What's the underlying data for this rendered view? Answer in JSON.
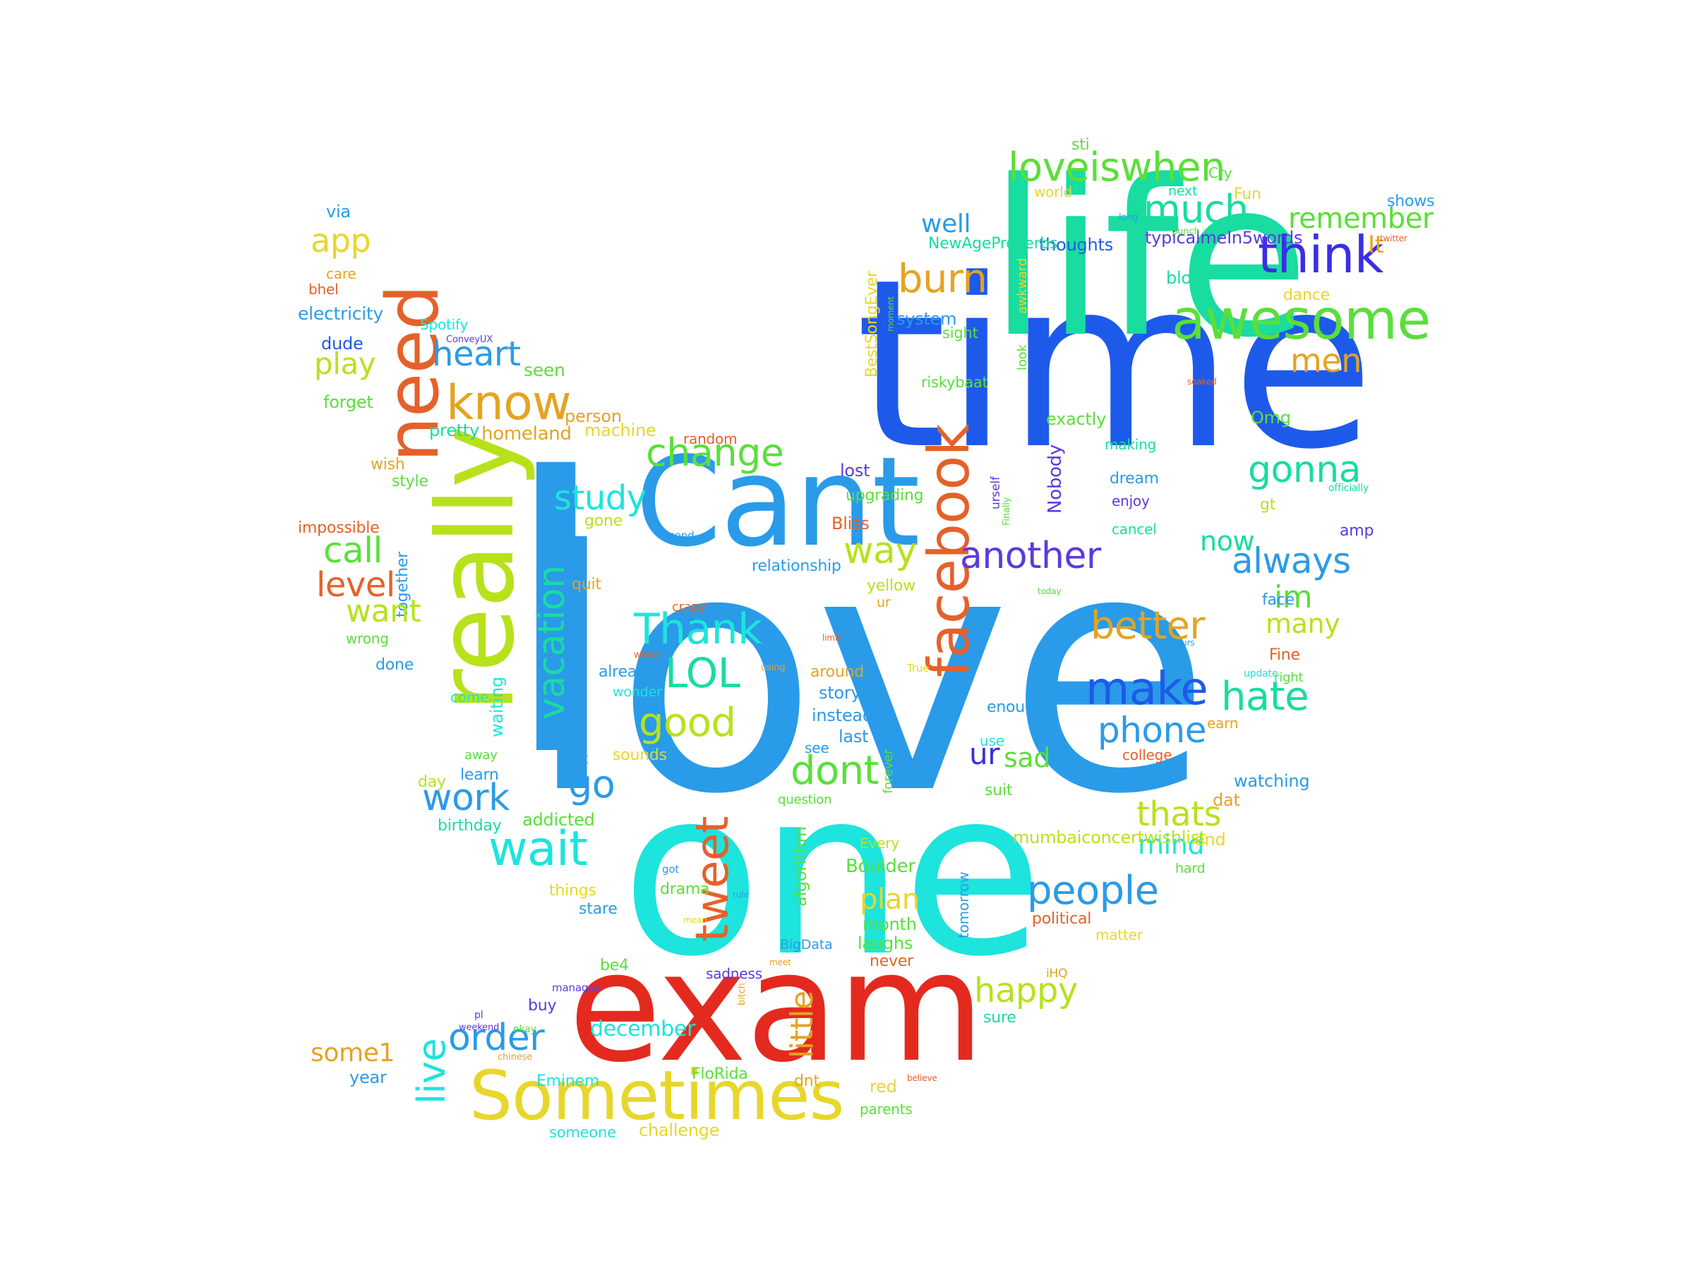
{
  "palette": {
    "cyan": "#1de4dc",
    "sky": "#2a9be8",
    "blue": "#1e5aea",
    "teal": "#18dca0",
    "green": "#5adf3a",
    "lime": "#b7e21b",
    "yellow": "#e8d62a",
    "orange": "#e5a321",
    "red": "#e42a1f",
    "redorange": "#e5612a",
    "indigo": "#3a2ee6",
    "purple": "#5a3ae0"
  },
  "words": [
    {
      "t": "love",
      "c": "sky"
    },
    {
      "t": "time",
      "c": "blue"
    },
    {
      "t": "life",
      "c": "teal"
    },
    {
      "t": "one",
      "c": "cyan"
    },
    {
      "t": "exam",
      "c": "red"
    },
    {
      "t": "I",
      "c": "sky"
    },
    {
      "t": "Cant",
      "c": "sky"
    },
    {
      "t": "really",
      "c": "lime"
    },
    {
      "t": "need",
      "c": "redorange"
    },
    {
      "t": "facebook",
      "c": "redorange"
    },
    {
      "t": "awesome",
      "c": "green"
    },
    {
      "t": "think",
      "c": "indigo"
    },
    {
      "t": "Sometimes",
      "c": "yellow"
    },
    {
      "t": "loveiswhen",
      "c": "green"
    },
    {
      "t": "much",
      "c": "teal"
    },
    {
      "t": "burn",
      "c": "orange"
    },
    {
      "t": "know",
      "c": "orange"
    },
    {
      "t": "change",
      "c": "green"
    },
    {
      "t": "study",
      "c": "cyan"
    },
    {
      "t": "Thank",
      "c": "cyan"
    },
    {
      "t": "LOL",
      "c": "teal"
    },
    {
      "t": "good",
      "c": "lime"
    },
    {
      "t": "make",
      "c": "blue"
    },
    {
      "t": "phone",
      "c": "sky"
    },
    {
      "t": "hate",
      "c": "teal"
    },
    {
      "t": "better",
      "c": "orange"
    },
    {
      "t": "another",
      "c": "purple"
    },
    {
      "t": "way",
      "c": "lime"
    },
    {
      "t": "gonna",
      "c": "teal"
    },
    {
      "t": "always",
      "c": "sky"
    },
    {
      "t": "people",
      "c": "sky"
    },
    {
      "t": "thats",
      "c": "lime"
    },
    {
      "t": "happy",
      "c": "lime"
    },
    {
      "t": "wait",
      "c": "cyan"
    },
    {
      "t": "work",
      "c": "sky"
    },
    {
      "t": "go",
      "c": "sky"
    },
    {
      "t": "dont",
      "c": "green"
    },
    {
      "t": "tweet",
      "c": "redorange"
    },
    {
      "t": "order",
      "c": "sky"
    },
    {
      "t": "live",
      "c": "cyan"
    },
    {
      "t": "vacation",
      "c": "teal"
    },
    {
      "t": "call",
      "c": "green"
    },
    {
      "t": "level",
      "c": "redorange"
    },
    {
      "t": "want",
      "c": "lime"
    },
    {
      "t": "heart",
      "c": "sky"
    },
    {
      "t": "app",
      "c": "yellow"
    },
    {
      "t": "play",
      "c": "lime"
    },
    {
      "t": "remember",
      "c": "green"
    },
    {
      "t": "men",
      "c": "orange"
    },
    {
      "t": "well",
      "c": "sky"
    },
    {
      "t": "im",
      "c": "green"
    },
    {
      "t": "many",
      "c": "lime"
    },
    {
      "t": "ur",
      "c": "indigo"
    },
    {
      "t": "sad",
      "c": "green"
    },
    {
      "t": "plan",
      "c": "yellow"
    },
    {
      "t": "little",
      "c": "orange"
    },
    {
      "t": "some1",
      "c": "orange"
    },
    {
      "t": "mind",
      "c": "cyan"
    },
    {
      "t": "december",
      "c": "cyan"
    },
    {
      "t": "Boulder",
      "c": "green"
    },
    {
      "t": "It",
      "c": "orange"
    },
    {
      "t": "now",
      "c": "teal"
    },
    {
      "t": "via",
      "c": "sky"
    },
    {
      "t": "care",
      "c": "orange"
    },
    {
      "t": "bhel",
      "c": "redorange"
    },
    {
      "t": "electricity",
      "c": "sky"
    },
    {
      "t": "Spotify",
      "c": "cyan"
    },
    {
      "t": "ConveyUX",
      "c": "purple"
    },
    {
      "t": "dude",
      "c": "blue"
    },
    {
      "t": "seen",
      "c": "green"
    },
    {
      "t": "forget",
      "c": "green"
    },
    {
      "t": "person",
      "c": "orange"
    },
    {
      "t": "pretty",
      "c": "teal"
    },
    {
      "t": "homeland",
      "c": "orange"
    },
    {
      "t": "machine",
      "c": "yellow"
    },
    {
      "t": "random",
      "c": "redorange"
    },
    {
      "t": "wish",
      "c": "orange"
    },
    {
      "t": "style",
      "c": "green"
    },
    {
      "t": "impossible",
      "c": "redorange"
    },
    {
      "t": "together",
      "c": "sky"
    },
    {
      "t": "gone",
      "c": "lime"
    },
    {
      "t": "quit",
      "c": "orange"
    },
    {
      "t": "wrong",
      "c": "green"
    },
    {
      "t": "done",
      "c": "sky"
    },
    {
      "t": "waiting",
      "c": "cyan"
    },
    {
      "t": "come",
      "c": "cyan"
    },
    {
      "t": "away",
      "c": "green"
    },
    {
      "t": "learn",
      "c": "sky"
    },
    {
      "t": "day",
      "c": "lime"
    },
    {
      "t": "birthday",
      "c": "teal"
    },
    {
      "t": "addicted",
      "c": "green"
    },
    {
      "t": "jet",
      "c": "sky"
    },
    {
      "t": "sounds",
      "c": "yellow"
    },
    {
      "t": "things",
      "c": "yellow"
    },
    {
      "t": "stare",
      "c": "sky"
    },
    {
      "t": "relationship",
      "c": "sky"
    },
    {
      "t": "crazy",
      "c": "redorange"
    },
    {
      "t": "already",
      "c": "sky"
    },
    {
      "t": "wonder",
      "c": "cyan"
    },
    {
      "t": "winter",
      "c": "redorange"
    },
    {
      "t": "using",
      "c": "orange"
    },
    {
      "t": "limit",
      "c": "redorange"
    },
    {
      "t": "around",
      "c": "orange"
    },
    {
      "t": "story",
      "c": "sky"
    },
    {
      "t": "instead",
      "c": "sky"
    },
    {
      "t": "last",
      "c": "sky"
    },
    {
      "t": "see",
      "c": "sky"
    },
    {
      "t": "bring",
      "c": "yellow"
    },
    {
      "t": "forever",
      "c": "green"
    },
    {
      "t": "question",
      "c": "green"
    },
    {
      "t": "algorithm",
      "c": "green"
    },
    {
      "t": "Every",
      "c": "lime"
    },
    {
      "t": "got",
      "c": "sky"
    },
    {
      "t": "drama",
      "c": "green"
    },
    {
      "t": "rule",
      "c": "sky"
    },
    {
      "t": "mean",
      "c": "yellow"
    },
    {
      "t": "month",
      "c": "green"
    },
    {
      "t": "laughs",
      "c": "green"
    },
    {
      "t": "never",
      "c": "redorange"
    },
    {
      "t": "BigData",
      "c": "sky"
    },
    {
      "t": "meet",
      "c": "orange"
    },
    {
      "t": "sadness",
      "c": "purple"
    },
    {
      "t": "bitch",
      "c": "orange"
    },
    {
      "t": "be4",
      "c": "green"
    },
    {
      "t": "manages",
      "c": "purple"
    },
    {
      "t": "pl",
      "c": "purple"
    },
    {
      "t": "weekend",
      "c": "purple"
    },
    {
      "t": "okay",
      "c": "green"
    },
    {
      "t": "buy",
      "c": "purple"
    },
    {
      "t": "chinese",
      "c": "orange"
    },
    {
      "t": "Eminem",
      "c": "cyan"
    },
    {
      "t": "year",
      "c": "sky"
    },
    {
      "t": "someone",
      "c": "cyan"
    },
    {
      "t": "challenge",
      "c": "yellow"
    },
    {
      "t": "FloRida",
      "c": "green"
    },
    {
      "t": "dnt",
      "c": "orange"
    },
    {
      "t": "red",
      "c": "yellow"
    },
    {
      "t": "parents",
      "c": "green"
    },
    {
      "t": "believe",
      "c": "redorange"
    },
    {
      "t": "sure",
      "c": "teal"
    },
    {
      "t": "iHQ",
      "c": "orange"
    },
    {
      "t": "matter",
      "c": "yellow"
    },
    {
      "t": "political",
      "c": "redorange"
    },
    {
      "t": "hard",
      "c": "green"
    },
    {
      "t": "end",
      "c": "yellow"
    },
    {
      "t": "dat",
      "c": "orange"
    },
    {
      "t": "watching",
      "c": "sky"
    },
    {
      "t": "mumbaiconcertwishlist",
      "c": "lime"
    },
    {
      "t": "colours",
      "c": "sky"
    },
    {
      "t": "suit",
      "c": "green"
    },
    {
      "t": "use",
      "c": "cyan"
    },
    {
      "t": "enough",
      "c": "sky"
    },
    {
      "t": "tomorrow",
      "c": "sky"
    },
    {
      "t": "college",
      "c": "redorange"
    },
    {
      "t": "earn",
      "c": "orange"
    },
    {
      "t": "Fine",
      "c": "redorange"
    },
    {
      "t": "right",
      "c": "green"
    },
    {
      "t": "update",
      "c": "cyan"
    },
    {
      "t": "face",
      "c": "sky"
    },
    {
      "t": "True",
      "c": "yellow"
    },
    {
      "t": "ur",
      "c": "orange"
    },
    {
      "t": "yellow",
      "c": "lime"
    },
    {
      "t": "today",
      "c": "green"
    },
    {
      "t": "send",
      "c": "sky"
    },
    {
      "t": "Bliss",
      "c": "redorange"
    },
    {
      "t": "upgrading",
      "c": "green"
    },
    {
      "t": "lost",
      "c": "purple"
    },
    {
      "t": "dream",
      "c": "sky"
    },
    {
      "t": "enjoy",
      "c": "purple"
    },
    {
      "t": "cancel",
      "c": "teal"
    },
    {
      "t": "urself",
      "c": "purple"
    },
    {
      "t": "Finally",
      "c": "green"
    },
    {
      "t": "Nobody",
      "c": "purple"
    },
    {
      "t": "making",
      "c": "teal"
    },
    {
      "t": "officially",
      "c": "teal"
    },
    {
      "t": "gt",
      "c": "lime"
    },
    {
      "t": "Omg",
      "c": "green"
    },
    {
      "t": "amp",
      "c": "purple"
    },
    {
      "t": "exactly",
      "c": "green"
    },
    {
      "t": "soaked",
      "c": "redorange"
    },
    {
      "t": "riskybaat",
      "c": "green"
    },
    {
      "t": "sight",
      "c": "green"
    },
    {
      "t": "system",
      "c": "sky"
    },
    {
      "t": "moment",
      "c": "green"
    },
    {
      "t": "BestSongEver",
      "c": "yellow"
    },
    {
      "t": "look",
      "c": "green"
    },
    {
      "t": "awkward",
      "c": "yellow"
    },
    {
      "t": "thoughts",
      "c": "blue"
    },
    {
      "t": "NewAgeProverbs",
      "c": "teal"
    },
    {
      "t": "blog",
      "c": "teal"
    },
    {
      "t": "dance",
      "c": "yellow"
    },
    {
      "t": "typicalmeIn5words",
      "c": "purple"
    },
    {
      "t": "long",
      "c": "sky"
    },
    {
      "t": "punch",
      "c": "green"
    },
    {
      "t": "twitter",
      "c": "redorange"
    },
    {
      "t": "shows",
      "c": "sky"
    },
    {
      "t": "Fun",
      "c": "yellow"
    },
    {
      "t": "Cry",
      "c": "green"
    },
    {
      "t": "next",
      "c": "teal"
    },
    {
      "t": "world",
      "c": "yellow"
    },
    {
      "t": "sti",
      "c": "green"
    }
  ]
}
